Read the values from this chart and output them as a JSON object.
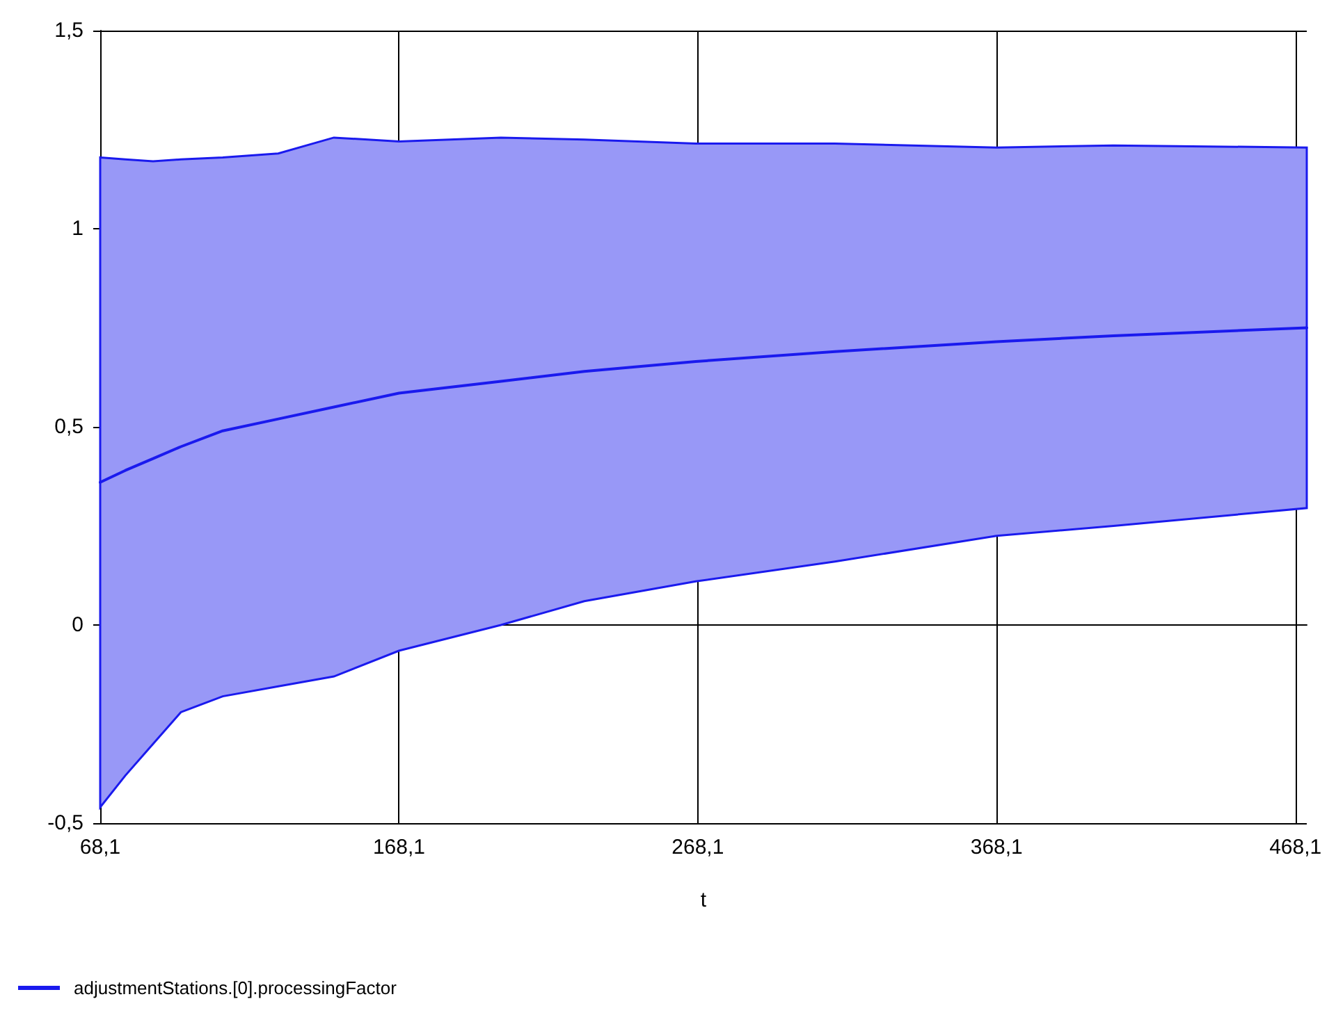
{
  "chart_data": {
    "type": "line",
    "xlabel": "t",
    "x": [
      68.1,
      76.5,
      85.8,
      95.1,
      109.1,
      127.7,
      146.3,
      168.1,
      202.2,
      230.1,
      267.4,
      314,
      368.1,
      407.2,
      471.9
    ],
    "series": [
      {
        "name": "adjustmentStations.[0].processingFactor",
        "color": "#1a1aee",
        "values": [
          0.36,
          0.39,
          0.42,
          0.45,
          0.49,
          0.52,
          0.55,
          0.585,
          0.615,
          0.64,
          0.665,
          0.69,
          0.715,
          0.73,
          0.75
        ],
        "lower": [
          -0.46,
          -0.38,
          -0.3,
          -0.22,
          -0.18,
          -0.155,
          -0.13,
          -0.065,
          0,
          0.06,
          0.11,
          0.16,
          0.225,
          0.25,
          0.295
        ],
        "upper": [
          1.18,
          1.175,
          1.17,
          1.175,
          1.18,
          1.19,
          1.23,
          1.22,
          1.23,
          1.225,
          1.215,
          1.215,
          1.205,
          1.21,
          1.205
        ]
      }
    ],
    "xlim": [
      68.1,
      471.9
    ],
    "xticks": [
      {
        "value": 68.1,
        "label": "68,1"
      },
      {
        "value": 168.1,
        "label": "168,1"
      },
      {
        "value": 268.1,
        "label": "268,1"
      },
      {
        "value": 368.1,
        "label": "368,1"
      },
      {
        "value": 468.1,
        "label": "468,1"
      }
    ],
    "ylim": [
      -0.5,
      1.5
    ],
    "yticks": [
      {
        "value": -0.5,
        "label": "-0,5"
      },
      0,
      {
        "value": 0.5,
        "label": "0,5"
      },
      1,
      {
        "value": 1.5,
        "label": "1,5"
      }
    ],
    "grid": true,
    "legend": "bottom left",
    "marker": "none",
    "line_style": "solid"
  }
}
